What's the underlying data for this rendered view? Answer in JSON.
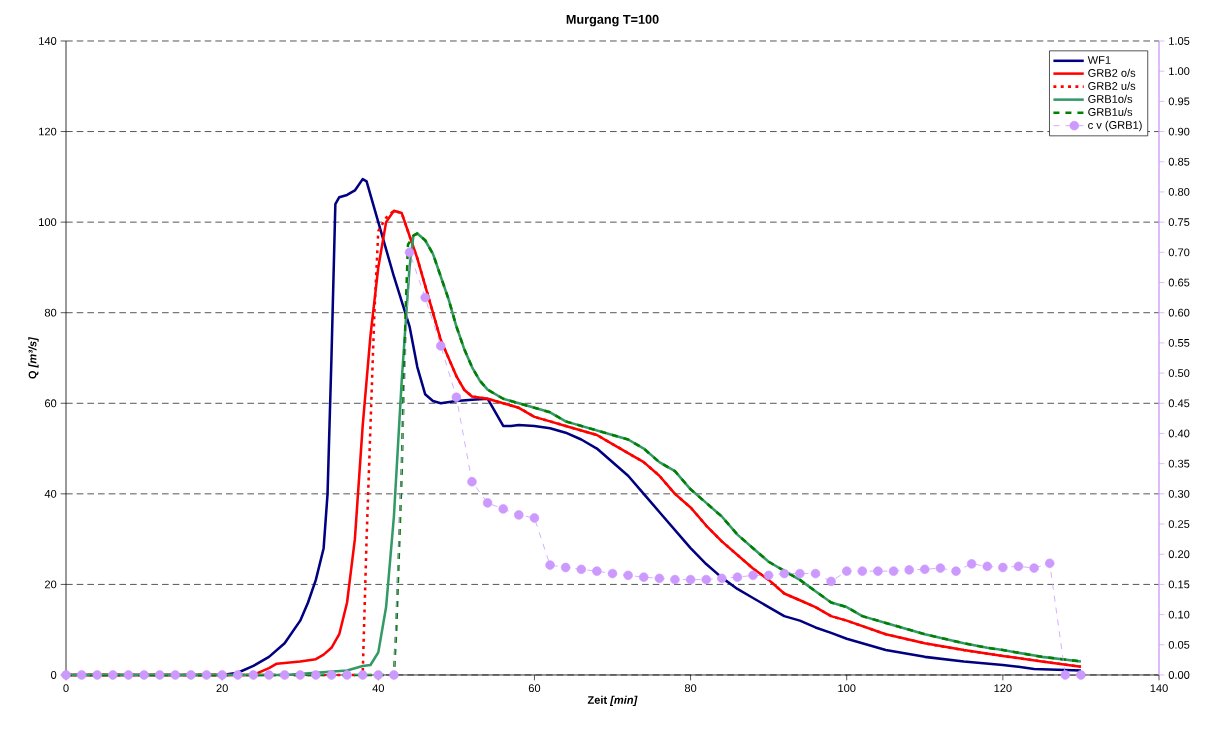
{
  "chart_data": {
    "type": "line",
    "title": "Murgang T=100",
    "xlabel": "Zeit *[min]*",
    "ylabel": "Q *[m³/s]*",
    "xlim": [
      0,
      140
    ],
    "xticks": [
      0,
      20,
      40,
      60,
      80,
      100,
      120,
      140
    ],
    "ylim": [
      0,
      140
    ],
    "yticks": [
      0,
      20,
      40,
      60,
      80,
      100,
      120,
      140
    ],
    "y2lim": [
      0,
      1.05
    ],
    "y2ticks": [
      {
        "value": 0,
        "label": "0.00"
      },
      {
        "value": 0.05,
        "label": "0.05"
      },
      {
        "value": 0.1,
        "label": "0.10"
      },
      {
        "value": 0.15,
        "label": "0.15"
      },
      {
        "value": 0.2,
        "label": "0.20"
      },
      {
        "value": 0.25,
        "label": "0.25"
      },
      {
        "value": 0.3,
        "label": "0.30"
      },
      {
        "value": 0.35,
        "label": "0.35"
      },
      {
        "value": 0.4,
        "label": "0.40"
      },
      {
        "value": 0.45,
        "label": "0.45"
      },
      {
        "value": 0.5,
        "label": "0.50"
      },
      {
        "value": 0.55,
        "label": "0.55"
      },
      {
        "value": 0.6,
        "label": "0.60"
      },
      {
        "value": 0.65,
        "label": "0.65"
      },
      {
        "value": 0.7,
        "label": "0.70"
      },
      {
        "value": 0.75,
        "label": "0.75"
      },
      {
        "value": 0.8,
        "label": "0.80"
      },
      {
        "value": 0.85,
        "label": "0.85"
      },
      {
        "value": 0.9,
        "label": "0.90"
      },
      {
        "value": 0.95,
        "label": "0.95"
      },
      {
        "value": 1.0,
        "label": "1.00"
      },
      {
        "value": 1.05,
        "label": "1.05"
      }
    ],
    "grid": "y",
    "legend": "top right",
    "series": [
      {
        "name": "WF1",
        "color": "#000080",
        "line_style": "solid",
        "marker": "none",
        "x": [
          0,
          20,
          22,
          24,
          26,
          28,
          30,
          31,
          32,
          33,
          33.5,
          34,
          34.5,
          35,
          36,
          37,
          38,
          38.5,
          40,
          42,
          44,
          45,
          46,
          47,
          48,
          50,
          52,
          54,
          55,
          56,
          57,
          58,
          60,
          62,
          64,
          66,
          68,
          70,
          72,
          74,
          76,
          78,
          80,
          82,
          84,
          86,
          88,
          90,
          92,
          94,
          96,
          98,
          100,
          105,
          110,
          115,
          120,
          122,
          124,
          126,
          128,
          130
        ],
        "values": [
          0,
          0,
          0.5,
          2,
          4,
          7,
          12,
          16,
          21,
          28,
          40,
          70,
          104,
          105.5,
          106,
          107,
          109.5,
          109,
          100,
          88,
          77,
          68,
          62,
          60.5,
          60,
          60.5,
          60.8,
          61,
          58,
          55,
          55,
          55.2,
          55,
          54.5,
          53.5,
          52,
          50,
          47,
          44,
          40,
          36,
          32,
          28,
          24.5,
          21.5,
          19,
          17,
          15,
          13,
          12,
          10.5,
          9.3,
          8,
          5.5,
          4,
          3,
          2.2,
          1.8,
          1.3,
          1.2,
          1.1,
          1
        ]
      },
      {
        "name": "GRB2 o/s",
        "color": "#ff0000",
        "line_style": "solid",
        "marker": "none",
        "x": [
          0,
          24,
          26,
          27,
          30,
          32,
          33,
          34,
          35,
          36,
          37,
          38,
          39,
          40,
          41,
          42,
          43,
          44,
          45,
          46,
          47,
          48,
          49,
          50,
          51,
          52,
          54,
          56,
          58,
          60,
          62,
          64,
          66,
          68,
          70,
          72,
          74,
          76,
          78,
          80,
          82,
          84,
          86,
          88,
          90,
          92,
          94,
          96,
          98,
          100,
          105,
          110,
          115,
          120,
          125,
          130
        ],
        "values": [
          0,
          0,
          1.5,
          2.5,
          3,
          3.5,
          4.5,
          6,
          9,
          16,
          30,
          55,
          75,
          90,
          100,
          102.5,
          102,
          97,
          92,
          86,
          80,
          74,
          70,
          66,
          63,
          61.5,
          61,
          60,
          59,
          57,
          56,
          55,
          54,
          53,
          51,
          49,
          47,
          44,
          40,
          37,
          33,
          29.5,
          26.5,
          23.5,
          21,
          18,
          16.5,
          15,
          13,
          12,
          9,
          7,
          5.5,
          4.2,
          3,
          1.8
        ]
      },
      {
        "name": "GRB2 u/s",
        "color": "#ff0000",
        "line_style": "dotted",
        "marker": "none",
        "x": [
          0,
          38,
          38.1,
          38.5,
          39,
          39.5,
          40,
          41,
          42,
          43,
          44,
          45,
          46,
          47,
          48,
          49,
          50,
          51,
          52,
          54,
          56,
          58,
          60,
          62,
          64,
          66,
          68,
          70,
          72,
          74,
          76,
          78,
          80,
          82,
          84,
          86,
          88,
          90,
          92,
          94,
          96,
          98,
          100,
          105,
          110,
          115,
          120,
          125,
          130
        ],
        "values": [
          0,
          0,
          6,
          30,
          55,
          80,
          98,
          101,
          102.5,
          102,
          97,
          92,
          86,
          80,
          74,
          70,
          66,
          63,
          61.5,
          61,
          60,
          59,
          57,
          56,
          55,
          54,
          53,
          51,
          49,
          47,
          44,
          40,
          37,
          33,
          29.5,
          26.5,
          23.5,
          21,
          18,
          16.5,
          15,
          13,
          12,
          9,
          7,
          5.5,
          4.2,
          3,
          1.8
        ]
      },
      {
        "name": "GRB1o/s",
        "color": "#339966",
        "line_style": "solid",
        "marker": "none",
        "x": [
          0,
          28,
          32,
          36,
          38,
          39,
          40,
          41,
          42,
          43,
          44,
          44.5,
          45,
          46,
          47,
          48,
          49,
          50,
          51,
          52,
          53,
          54,
          56,
          58,
          60,
          62,
          64,
          66,
          68,
          70,
          72,
          74,
          76,
          78,
          80,
          82,
          84,
          86,
          88,
          90,
          92,
          94,
          96,
          98,
          100,
          102,
          105,
          110,
          115,
          118,
          120,
          125,
          130
        ],
        "values": [
          0,
          0,
          0.5,
          1,
          2,
          2.2,
          5,
          15,
          35,
          65,
          90,
          97,
          97.5,
          96,
          93,
          88,
          83,
          77,
          72,
          68,
          65,
          63,
          61,
          60,
          59,
          58,
          56,
          55,
          54,
          53,
          52,
          50,
          47,
          45,
          41,
          38,
          35,
          31,
          28,
          25,
          23,
          21,
          18.5,
          16,
          15,
          13,
          11.5,
          9,
          7,
          6,
          5.5,
          4,
          3
        ]
      },
      {
        "name": "GRB1u/s",
        "color": "#008000",
        "line_style": "dashed",
        "marker": "none",
        "x": [
          0,
          42,
          42.3,
          42.6,
          43,
          43.2,
          43.5,
          43.8,
          44.5,
          45,
          46,
          47,
          48,
          49,
          50,
          51,
          52,
          53,
          54,
          56,
          58,
          60,
          62,
          64,
          66,
          68,
          70,
          72,
          74,
          76,
          78,
          80,
          82,
          84,
          86,
          88,
          90,
          92,
          94,
          96,
          98,
          100,
          102,
          105,
          110,
          115,
          118,
          120,
          125,
          130
        ],
        "values": [
          0,
          0,
          10,
          25,
          45,
          60,
          80,
          95,
          97,
          97.5,
          96,
          93,
          88,
          83,
          77,
          72,
          68,
          65,
          63,
          61,
          60,
          59,
          58,
          56,
          55,
          54,
          53,
          52,
          50,
          47,
          45,
          41,
          38,
          35,
          31,
          28,
          25,
          23,
          21,
          18.5,
          16,
          15,
          13,
          11.5,
          9,
          7,
          6,
          5.5,
          4,
          3
        ]
      },
      {
        "name": "c v (GRB1)",
        "color": "#cc99ff",
        "line_style": "dashed",
        "marker": "circle",
        "axis": "y2",
        "x": [
          0,
          2,
          4,
          6,
          8,
          10,
          12,
          14,
          16,
          18,
          20,
          22,
          24,
          26,
          28,
          30,
          32,
          34,
          36,
          38,
          40,
          42,
          44,
          46,
          48,
          50,
          52,
          54,
          56,
          58,
          60,
          62,
          64,
          66,
          68,
          70,
          72,
          74,
          76,
          78,
          80,
          82,
          84,
          86,
          88,
          90,
          92,
          94,
          96,
          98,
          100,
          102,
          104,
          106,
          108,
          110,
          112,
          114,
          116,
          118,
          120,
          122,
          124,
          126,
          128,
          130
        ],
        "values": [
          0,
          0,
          0,
          0,
          0,
          0,
          0,
          0,
          0,
          0,
          0,
          0,
          0,
          0,
          0,
          0,
          0,
          0,
          0,
          0,
          0,
          0,
          0.7,
          0.625,
          0.545,
          0.46,
          0.32,
          0.285,
          0.275,
          0.265,
          0.26,
          0.182,
          0.178,
          0.175,
          0.172,
          0.168,
          0.165,
          0.162,
          0.16,
          0.158,
          0.158,
          0.158,
          0.16,
          0.162,
          0.165,
          0.165,
          0.168,
          0.168,
          0.168,
          0.155,
          0.172,
          0.172,
          0.172,
          0.172,
          0.174,
          0.175,
          0.177,
          0.172,
          0.184,
          0.18,
          0.178,
          0.18,
          0.177,
          0.185,
          0,
          0
        ]
      }
    ]
  }
}
